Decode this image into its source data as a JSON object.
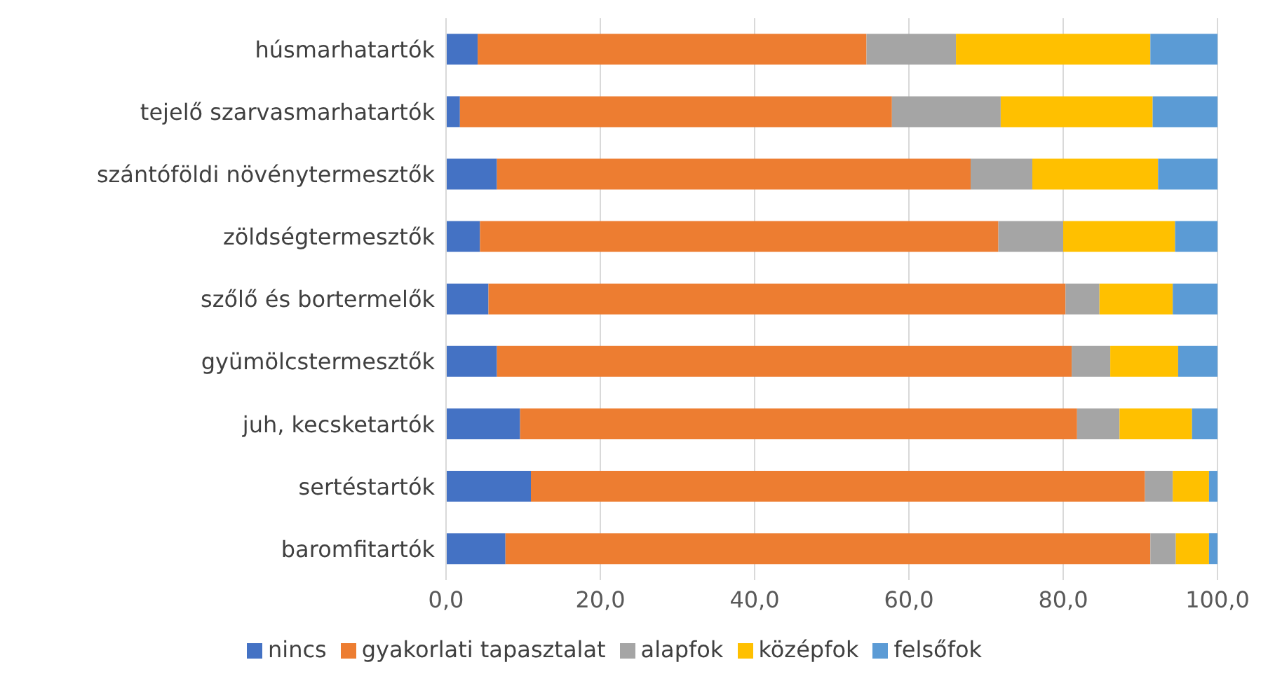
{
  "chart_data": {
    "type": "bar",
    "orientation": "horizontal",
    "stacked": true,
    "categories": [
      "húsmarhatartók",
      "tejelő szarvasmarhatartók",
      "szántóföldi növénytermesztők",
      "zöldségtermesztők",
      "szőlő és bortermelők",
      "gyümölcstermesztők",
      "juh, kecsketartók",
      "sertéstartók",
      "baromfitartók"
    ],
    "series": [
      {
        "name": "nincs",
        "color": "#4472c4",
        "values": [
          4.1,
          1.8,
          6.6,
          4.4,
          5.5,
          6.6,
          9.6,
          11.0,
          7.7
        ]
      },
      {
        "name": "gyakorlati tapasztalat",
        "color": "#ed7d31",
        "values": [
          50.4,
          56.0,
          61.4,
          67.2,
          74.8,
          74.5,
          72.2,
          79.6,
          83.6
        ]
      },
      {
        "name": "alapfok",
        "color": "#a5a5a5",
        "values": [
          11.6,
          14.1,
          8.0,
          8.4,
          4.4,
          5.0,
          5.5,
          3.6,
          3.3
        ]
      },
      {
        "name": "középfok",
        "color": "#ffc000",
        "values": [
          25.2,
          19.7,
          16.3,
          14.5,
          9.5,
          8.8,
          9.4,
          4.7,
          4.3
        ]
      },
      {
        "name": "felsőfok",
        "color": "#5b9bd5",
        "values": [
          8.7,
          8.4,
          7.7,
          5.5,
          5.8,
          5.1,
          3.3,
          1.1,
          1.1
        ]
      }
    ],
    "xlim": [
      0,
      100
    ],
    "xticks": [
      {
        "value": 0,
        "label": "0,0"
      },
      {
        "value": 20,
        "label": "20,0"
      },
      {
        "value": 40,
        "label": "40,0"
      },
      {
        "value": 60,
        "label": "60,0"
      },
      {
        "value": 80,
        "label": "80,0"
      },
      {
        "value": 100,
        "label": "100,0"
      }
    ],
    "grid": "x",
    "legend": "bottom"
  }
}
